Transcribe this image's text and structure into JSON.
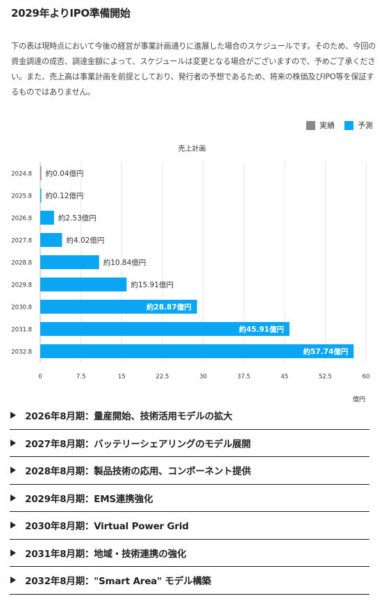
{
  "heading": "2029年よりIPO準備開始",
  "description": "下の表は現時点において今後の経営が事業計画通りに進展した場合のスケジュールです。そのため、今回の資金調達の成否、調達金額によって、スケジュールは変更となる場合がございますので、予めご了承ください。また、売上高は事業計画を前提としており、発行者の予想であるため、将来の株価及びIPO等を保証するものではありません。",
  "legend": [
    {
      "label": "実績",
      "color": "#888888"
    },
    {
      "label": "予測",
      "color": "#0aa5f3"
    }
  ],
  "chart_data": {
    "type": "bar",
    "orientation": "horizontal",
    "title": "売上計画",
    "categories": [
      "2024.8",
      "2025.8",
      "2026.8",
      "2027.8",
      "2028.8",
      "2029.8",
      "2030.8",
      "2031.8",
      "2032.8"
    ],
    "values": [
      0.04,
      0.12,
      2.53,
      4.02,
      10.84,
      15.91,
      28.87,
      45.91,
      57.74
    ],
    "value_labels": [
      "約0.04億円",
      "約0.12億円",
      "約2.53億円",
      "約4.02億円",
      "約10.84億円",
      "約15.91億円",
      "約28.87億円",
      "約45.91億円",
      "約57.74億円"
    ],
    "series_colors": [
      "#888888",
      "#0aa5f3",
      "#0aa5f3",
      "#0aa5f3",
      "#0aa5f3",
      "#0aa5f3",
      "#0aa5f3",
      "#0aa5f3",
      "#0aa5f3"
    ],
    "xticks": [
      "0",
      "7.5",
      "15",
      "22.5",
      "30",
      "37.5",
      "45",
      "52.5",
      "60"
    ],
    "xlim": [
      0,
      60
    ],
    "xunit": "億円",
    "grid": true
  },
  "milestones": [
    "2026年8月期：量産開始、技術活用モデルの拡大",
    "2027年8月期：バッテリーシェアリングのモデル展開",
    "2028年8月期：製品技術の応用、コンポーネント提供",
    "2029年8月期：EMS連携強化",
    "2030年8月期：Virtual Power Grid",
    "2031年8月期：地域・技術連携の強化",
    "2032年8月期：\"Smart Area\" モデル構築"
  ]
}
